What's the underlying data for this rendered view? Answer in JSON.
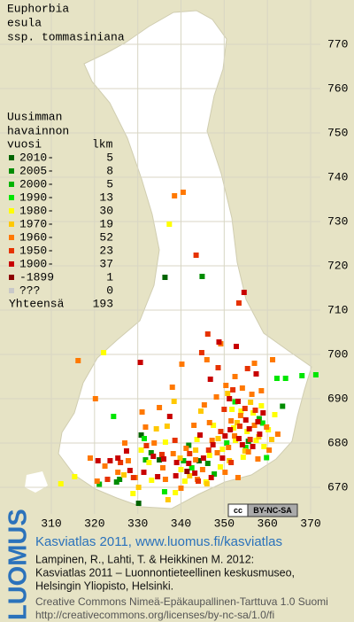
{
  "title": [
    "Euphorbia",
    "esula",
    "ssp. tommasiniana"
  ],
  "legend": {
    "heading": [
      "Uusimman",
      "havainnon",
      "vuosi"
    ],
    "count_heading": "lkm",
    "rows": [
      {
        "label": "2010-",
        "count": 5,
        "color": "#006400",
        "points": [
          [
            336.3,
            717.4
          ],
          [
            330.2,
            666.4
          ],
          [
            335,
            676.2
          ],
          [
            344.2,
            676
          ],
          [
            330.8,
            681.8
          ]
        ]
      },
      {
        "label": "2005-",
        "count": 8,
        "color": "#008c00",
        "points": [
          [
            344.9,
            717.6
          ],
          [
            325.1,
            671.2
          ],
          [
            363.5,
            688.3
          ],
          [
            346.2,
            675.4
          ],
          [
            333.1,
            677.8
          ],
          [
            325.8,
            671.8
          ],
          [
            355.6,
            680.4
          ],
          [
            341.8,
            679.5
          ]
        ]
      },
      {
        "label": "2000-",
        "count": 5,
        "color": "#00b400",
        "points": [
          [
            358.1,
            685.5
          ],
          [
            331.8,
            676.2
          ],
          [
            340.6,
            676
          ],
          [
            347.7,
            673
          ],
          [
            321.1,
            670.7
          ]
        ]
      },
      {
        "label": "1990-",
        "count": 13,
        "color": "#00e600",
        "points": [
          [
            368,
            695.2
          ],
          [
            371.2,
            695.4
          ],
          [
            362.2,
            694.6
          ],
          [
            364.2,
            694.6
          ],
          [
            352.5,
            689.3
          ],
          [
            358.9,
            684.5
          ],
          [
            350.6,
            680
          ],
          [
            355,
            679
          ],
          [
            359.8,
            676.7
          ],
          [
            331.5,
            681
          ],
          [
            342.5,
            674.4
          ],
          [
            324.4,
            686
          ],
          [
            336.2,
            669
          ]
        ]
      },
      {
        "label": "1980-",
        "count": 30,
        "color": "#ffff00",
        "points": [
          [
            337.3,
            729.4
          ],
          [
            322.1,
            700.4
          ],
          [
            312.2,
            670.8
          ],
          [
            315.4,
            672.4
          ],
          [
            330.8,
            678.4
          ],
          [
            333.2,
            671.6
          ],
          [
            336.4,
            680.2
          ],
          [
            340,
            674
          ],
          [
            343.7,
            680.8
          ],
          [
            345.8,
            671.2
          ],
          [
            349.6,
            678.6
          ],
          [
            351.8,
            687.6
          ],
          [
            353.9,
            687.2
          ],
          [
            355.3,
            682.6
          ],
          [
            356.7,
            686.8
          ],
          [
            357.4,
            680.6
          ],
          [
            358.6,
            688.4
          ],
          [
            360.2,
            683
          ],
          [
            361.7,
            686.4
          ],
          [
            354.4,
            676.8
          ],
          [
            352.2,
            683.4
          ],
          [
            349.1,
            674.6
          ],
          [
            346.6,
            677.2
          ],
          [
            340.9,
            671.4
          ],
          [
            338.7,
            668.8
          ],
          [
            332.6,
            675.6
          ],
          [
            328.9,
            668.6
          ],
          [
            347.5,
            684
          ],
          [
            352.6,
            680.6
          ],
          [
            359.2,
            679.2
          ]
        ]
      },
      {
        "label": "1970-",
        "count": 19,
        "color": "#ffc800",
        "points": [
          [
            334.3,
            683.2
          ],
          [
            338.4,
            689.4
          ],
          [
            343.4,
            678.4
          ],
          [
            346,
            670.8
          ],
          [
            339.8,
            676.6
          ],
          [
            350.8,
            691.2
          ],
          [
            356.1,
            689.2
          ],
          [
            358,
            681.4
          ],
          [
            353,
            684.6
          ],
          [
            326.8,
            672.8
          ],
          [
            330.2,
            670
          ],
          [
            337,
            667.2
          ],
          [
            342,
            672.6
          ],
          [
            348.6,
            681
          ],
          [
            354.8,
            678.2
          ],
          [
            361,
            680.8
          ],
          [
            344.6,
            687.2
          ],
          [
            336.8,
            683.8
          ],
          [
            351.2,
            676
          ]
        ]
      },
      {
        "label": "1960-",
        "count": 52,
        "color": "#ff7800",
        "points": [
          [
            340.5,
            736.6
          ],
          [
            338.5,
            735.8
          ],
          [
            349.2,
            702.4
          ],
          [
            346,
            698.8
          ],
          [
            352.5,
            695
          ],
          [
            350.4,
            693
          ],
          [
            348.2,
            690.4
          ],
          [
            345.4,
            688.6
          ],
          [
            354.2,
            692.4
          ],
          [
            356.4,
            691
          ],
          [
            351.6,
            685
          ],
          [
            358.6,
            691.8
          ],
          [
            357,
            684
          ],
          [
            352.4,
            681.6
          ],
          [
            355.6,
            678
          ],
          [
            360.4,
            678.4
          ],
          [
            357.8,
            676.4
          ],
          [
            348.4,
            677.8
          ],
          [
            345,
            674
          ],
          [
            343.4,
            676.2
          ],
          [
            341.2,
            678.8
          ],
          [
            338.2,
            677.6
          ],
          [
            335.8,
            674.4
          ],
          [
            333.8,
            680
          ],
          [
            331.8,
            683.6
          ],
          [
            327.8,
            676
          ],
          [
            325.4,
            673.4
          ],
          [
            322.4,
            674.8
          ],
          [
            319,
            676.6
          ],
          [
            320.6,
            671.4
          ],
          [
            329.4,
            672.2
          ],
          [
            336.4,
            671.8
          ],
          [
            340,
            669.8
          ],
          [
            343.8,
            671.8
          ],
          [
            350.2,
            673.4
          ],
          [
            353.2,
            672.2
          ],
          [
            347.2,
            680.6
          ],
          [
            351,
            679
          ],
          [
            353.8,
            686.2
          ],
          [
            359.8,
            683.6
          ],
          [
            362.4,
            682
          ],
          [
            346.6,
            684.6
          ],
          [
            343,
            684
          ],
          [
            335,
            688
          ],
          [
            338,
            692.6
          ],
          [
            316.2,
            698.6
          ],
          [
            320.2,
            690
          ],
          [
            327,
            680
          ],
          [
            331,
            687
          ],
          [
            340.2,
            697.8
          ],
          [
            357,
            698
          ],
          [
            361.2,
            698.8
          ]
        ]
      },
      {
        "label": "1950-",
        "count": 23,
        "color": "#e63200",
        "points": [
          [
            343.5,
            722.4
          ],
          [
            353.4,
            711.6
          ],
          [
            346.2,
            704.6
          ],
          [
            344.8,
            700.4
          ],
          [
            348.6,
            697
          ],
          [
            355.4,
            696.8
          ],
          [
            352,
            692
          ],
          [
            350,
            687.6
          ],
          [
            354.8,
            687.8
          ],
          [
            357.2,
            687.4
          ],
          [
            353.6,
            683.8
          ],
          [
            356,
            680.8
          ],
          [
            349.2,
            682.6
          ],
          [
            346.4,
            678.4
          ],
          [
            342,
            677.6
          ],
          [
            338.6,
            680.6
          ],
          [
            335.6,
            677.4
          ],
          [
            332,
            679.4
          ],
          [
            326,
            675.6
          ],
          [
            323,
            671.8
          ],
          [
            329,
            672.2
          ],
          [
            344,
            671.4
          ],
          [
            351.6,
            675.6
          ]
        ]
      },
      {
        "label": "1900-",
        "count": 37,
        "color": "#c80000",
        "points": [
          [
            354.6,
            714
          ],
          [
            348.8,
            702.8
          ],
          [
            352.8,
            701.8
          ],
          [
            357.4,
            695.6
          ],
          [
            346.8,
            694.4
          ],
          [
            351.2,
            690
          ],
          [
            353.2,
            689.4
          ],
          [
            355,
            685.2
          ],
          [
            357.8,
            684.8
          ],
          [
            359,
            686.8
          ],
          [
            351.4,
            683
          ],
          [
            353.4,
            681
          ],
          [
            355.8,
            683.2
          ],
          [
            358.2,
            682
          ],
          [
            354.2,
            679.6
          ],
          [
            356.6,
            679.2
          ],
          [
            350.2,
            681.6
          ],
          [
            347.4,
            679.6
          ],
          [
            345.2,
            676.6
          ],
          [
            341.8,
            675.4
          ],
          [
            339,
            675.6
          ],
          [
            336,
            676.4
          ],
          [
            333.6,
            677
          ],
          [
            331.4,
            673.4
          ],
          [
            328.2,
            673.8
          ],
          [
            325.4,
            676.6
          ],
          [
            323.6,
            676
          ],
          [
            320.8,
            676
          ],
          [
            327.4,
            678.2
          ],
          [
            334.6,
            672.4
          ],
          [
            338.8,
            672.6
          ],
          [
            343.2,
            673.2
          ],
          [
            347,
            672.2
          ],
          [
            349.6,
            676.6
          ],
          [
            344.4,
            681.8
          ],
          [
            337.4,
            686
          ],
          [
            330.6,
            698.2
          ]
        ]
      },
      {
        "label": "-1899",
        "count": 1,
        "color": "#8c0000",
        "points": [
          [
            341.4,
            673.6
          ]
        ]
      },
      {
        "label": "???",
        "count": 0,
        "color": "#c8c8c8",
        "points": []
      }
    ],
    "total_label": "Yhteensä",
    "total": 193
  },
  "x_axis": {
    "ticks": [
      310,
      320,
      330,
      340,
      350,
      360,
      370
    ]
  },
  "y_axis": {
    "ticks": [
      670,
      680,
      690,
      700,
      710,
      720,
      730,
      740,
      750,
      760,
      770
    ]
  },
  "badge": {
    "icon": "cc",
    "text": "BY-NC-SA"
  },
  "footer": {
    "logo": "LUOMUS",
    "site": "Kasviatlas 2011, www.luomus.fi/kasviatlas",
    "citation": [
      "Lampinen, R., Lahti, T. & Heikkinen M. 2012:",
      "Kasviatlas 2011 – Luonnontieteellinen keskusmuseo,",
      "Helsingin Yliopisto, Helsinki."
    ],
    "license": [
      "Creative Commons Nimeä-Epäkaupallinen-Tarttuva 1.0 Suomi",
      "http://creativecommons.org/licenses/by-nc-sa/1.0/fi"
    ]
  }
}
